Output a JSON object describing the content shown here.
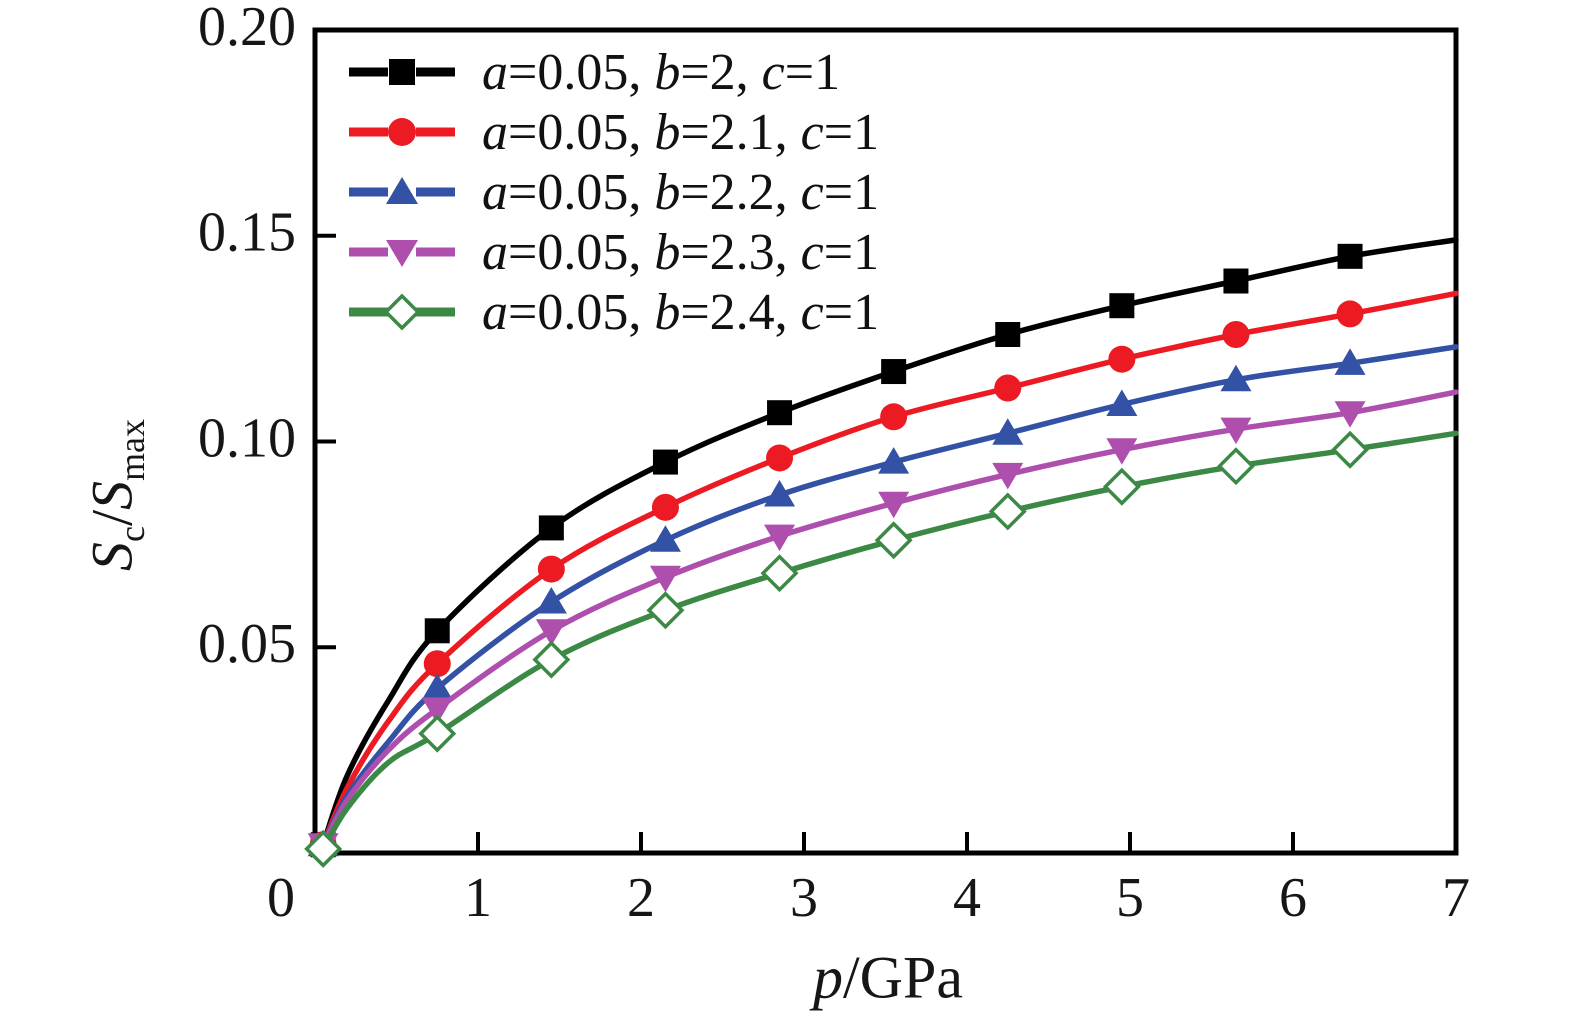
{
  "figure": {
    "background": "#ffffff",
    "axis_color": "#000000",
    "x_axis": {
      "title_var": "p",
      "title_rest": "/GPa",
      "tick_labels": [
        "0",
        "1",
        "2",
        "3",
        "4",
        "5",
        "6",
        "7"
      ],
      "tick_values": [
        0,
        1,
        2,
        3,
        4,
        5,
        6,
        7
      ],
      "range": [
        0,
        7
      ]
    },
    "y_axis": {
      "title_num": "S",
      "title_num_sub": "c",
      "title_slash": "/",
      "title_den": "S",
      "title_den_sub": "max",
      "tick_labels": [
        "0.05",
        "0.10",
        "0.15",
        "0.20"
      ],
      "tick_values": [
        0.05,
        0.1,
        0.15,
        0.2
      ],
      "range": [
        0,
        0.2
      ]
    }
  },
  "chart_data": {
    "type": "line",
    "title": "",
    "xlabel": "p/GPa",
    "ylabel": "Sc/Smax",
    "xlim": [
      0,
      7
    ],
    "ylim": [
      0,
      0.2
    ],
    "grid": false,
    "legend_position": "top-left-inside",
    "x": [
      0.05,
      0.2,
      0.45,
      0.75,
      1.45,
      2.15,
      2.85,
      3.55,
      4.25,
      4.95,
      5.65,
      6.35,
      7.0
    ],
    "marker_x": [
      0.05,
      0.75,
      1.45,
      2.15,
      2.85,
      3.55,
      4.25,
      4.95,
      5.65,
      6.35
    ],
    "series": [
      {
        "name": "b2.0",
        "label": "a=0.05, b=2, c=1",
        "label_parts": [
          [
            "a",
            "0.05"
          ],
          [
            "b",
            "2"
          ],
          [
            "c",
            "1"
          ]
        ],
        "color": "#000000",
        "marker": "square-filled",
        "values": [
          0.002,
          0.019,
          0.037,
          0.054,
          0.079,
          0.095,
          0.107,
          0.117,
          0.126,
          0.133,
          0.139,
          0.145,
          0.149
        ]
      },
      {
        "name": "b2.1",
        "label": "a=0.05, b=2.1, c=1",
        "label_parts": [
          [
            "a",
            "0.05"
          ],
          [
            "b",
            "2.1"
          ],
          [
            "c",
            "1"
          ]
        ],
        "color": "#EC1B23",
        "marker": "circle-filled",
        "values": [
          0.002,
          0.016,
          0.032,
          0.046,
          0.069,
          0.084,
          0.096,
          0.106,
          0.113,
          0.12,
          0.126,
          0.131,
          0.136
        ]
      },
      {
        "name": "b2.2",
        "label": "a=0.05, b=2.2, c=1",
        "label_parts": [
          [
            "a",
            "0.05"
          ],
          [
            "b",
            "2.2"
          ],
          [
            "c",
            "1"
          ]
        ],
        "color": "#3351A5",
        "marker": "triangle-up-filled",
        "values": [
          0.002,
          0.014,
          0.027,
          0.04,
          0.061,
          0.076,
          0.087,
          0.095,
          0.102,
          0.109,
          0.115,
          0.119,
          0.123
        ]
      },
      {
        "name": "b2.3",
        "label": "a=0.05, b=2.3, c=1",
        "label_parts": [
          [
            "a",
            "0.05"
          ],
          [
            "b",
            "2.3"
          ],
          [
            "c",
            "1"
          ]
        ],
        "color": "#AE4FAE",
        "marker": "triangle-down-filled",
        "values": [
          0.002,
          0.013,
          0.025,
          0.035,
          0.054,
          0.067,
          0.077,
          0.085,
          0.092,
          0.098,
          0.103,
          0.107,
          0.112
        ]
      },
      {
        "name": "b2.4",
        "label": "a=0.05, b=2.4, c=1",
        "label_parts": [
          [
            "a",
            "0.05"
          ],
          [
            "b",
            "2.4"
          ],
          [
            "c",
            "1"
          ]
        ],
        "color": "#3C8945",
        "marker": "diamond-open",
        "values": [
          0.001,
          0.011,
          0.022,
          0.029,
          0.047,
          0.059,
          0.068,
          0.076,
          0.083,
          0.089,
          0.094,
          0.098,
          0.102
        ]
      }
    ]
  }
}
